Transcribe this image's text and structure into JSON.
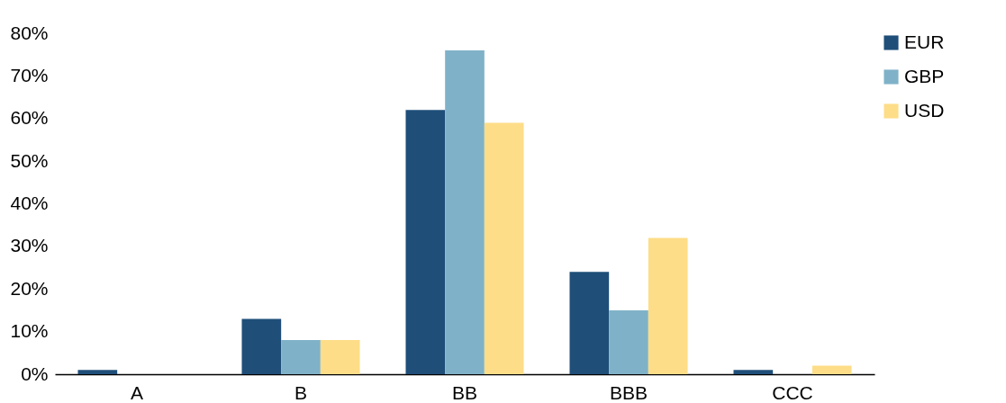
{
  "chart_data": {
    "type": "bar",
    "categories": [
      "A",
      "B",
      "BB",
      "BBB",
      "CCC"
    ],
    "series": [
      {
        "name": "EUR",
        "color": "#1f4e79",
        "values": [
          1,
          13,
          62,
          24,
          1
        ]
      },
      {
        "name": "GBP",
        "color": "#7fb2c8",
        "values": [
          0,
          8,
          76,
          15,
          0
        ]
      },
      {
        "name": "USD",
        "color": "#fedd88",
        "values": [
          0,
          8,
          59,
          32,
          2
        ]
      }
    ],
    "ylim": [
      0,
      80
    ],
    "yticks": [
      {
        "value": 0,
        "label": "0%"
      },
      {
        "value": 10,
        "label": "10%"
      },
      {
        "value": 20,
        "label": "20%"
      },
      {
        "value": 30,
        "label": "30%"
      },
      {
        "value": 40,
        "label": "40%"
      },
      {
        "value": 50,
        "label": "50%"
      },
      {
        "value": 60,
        "label": "60%"
      },
      {
        "value": 70,
        "label": "70%"
      },
      {
        "value": 80,
        "label": "80%"
      }
    ],
    "grid": false,
    "legend": "right"
  }
}
